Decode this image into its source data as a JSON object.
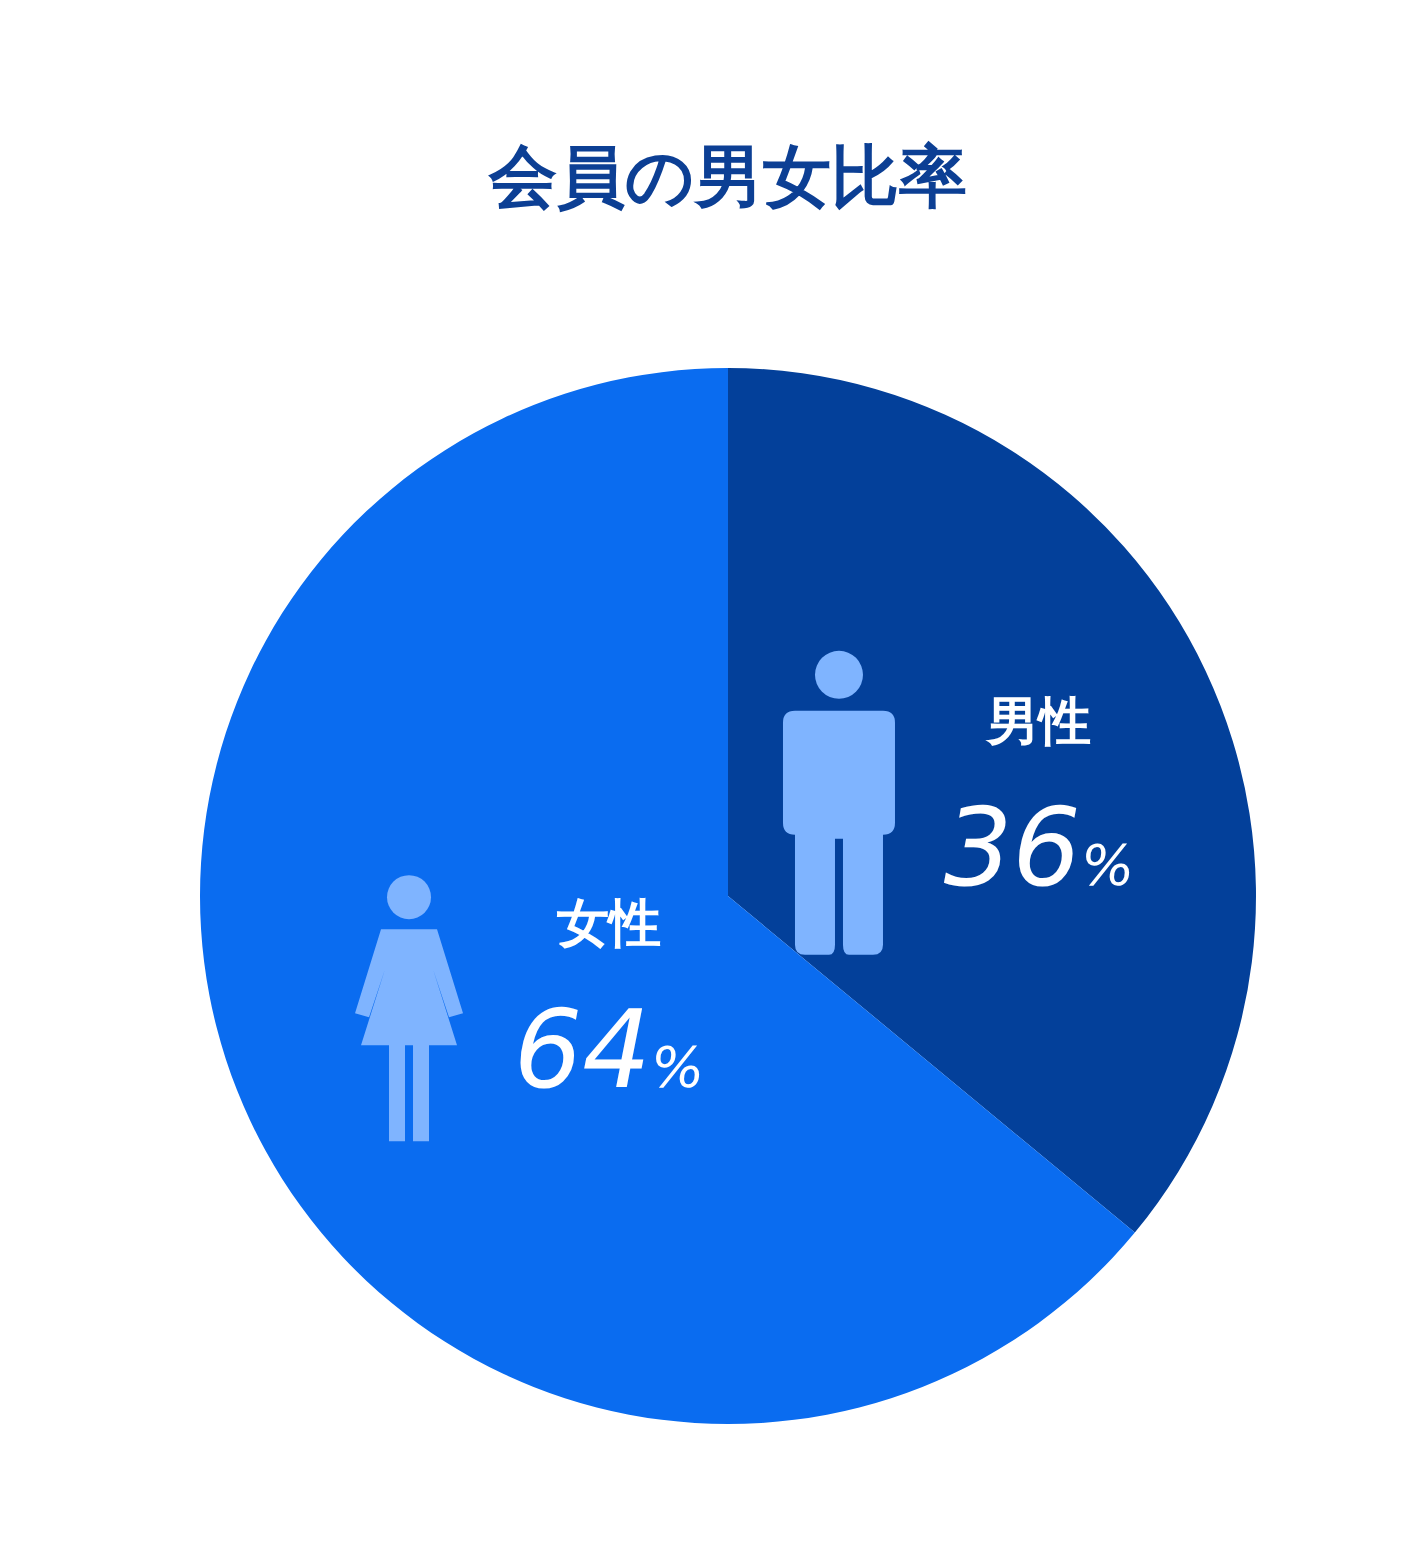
{
  "chart_data": {
    "type": "pie",
    "title": "会員の男女比率",
    "categories": [
      "男性",
      "女性"
    ],
    "values": [
      36,
      64
    ],
    "value_labels": [
      "36%",
      "64%"
    ],
    "colors": [
      "#03409a",
      "#0a6cf0"
    ]
  }
}
